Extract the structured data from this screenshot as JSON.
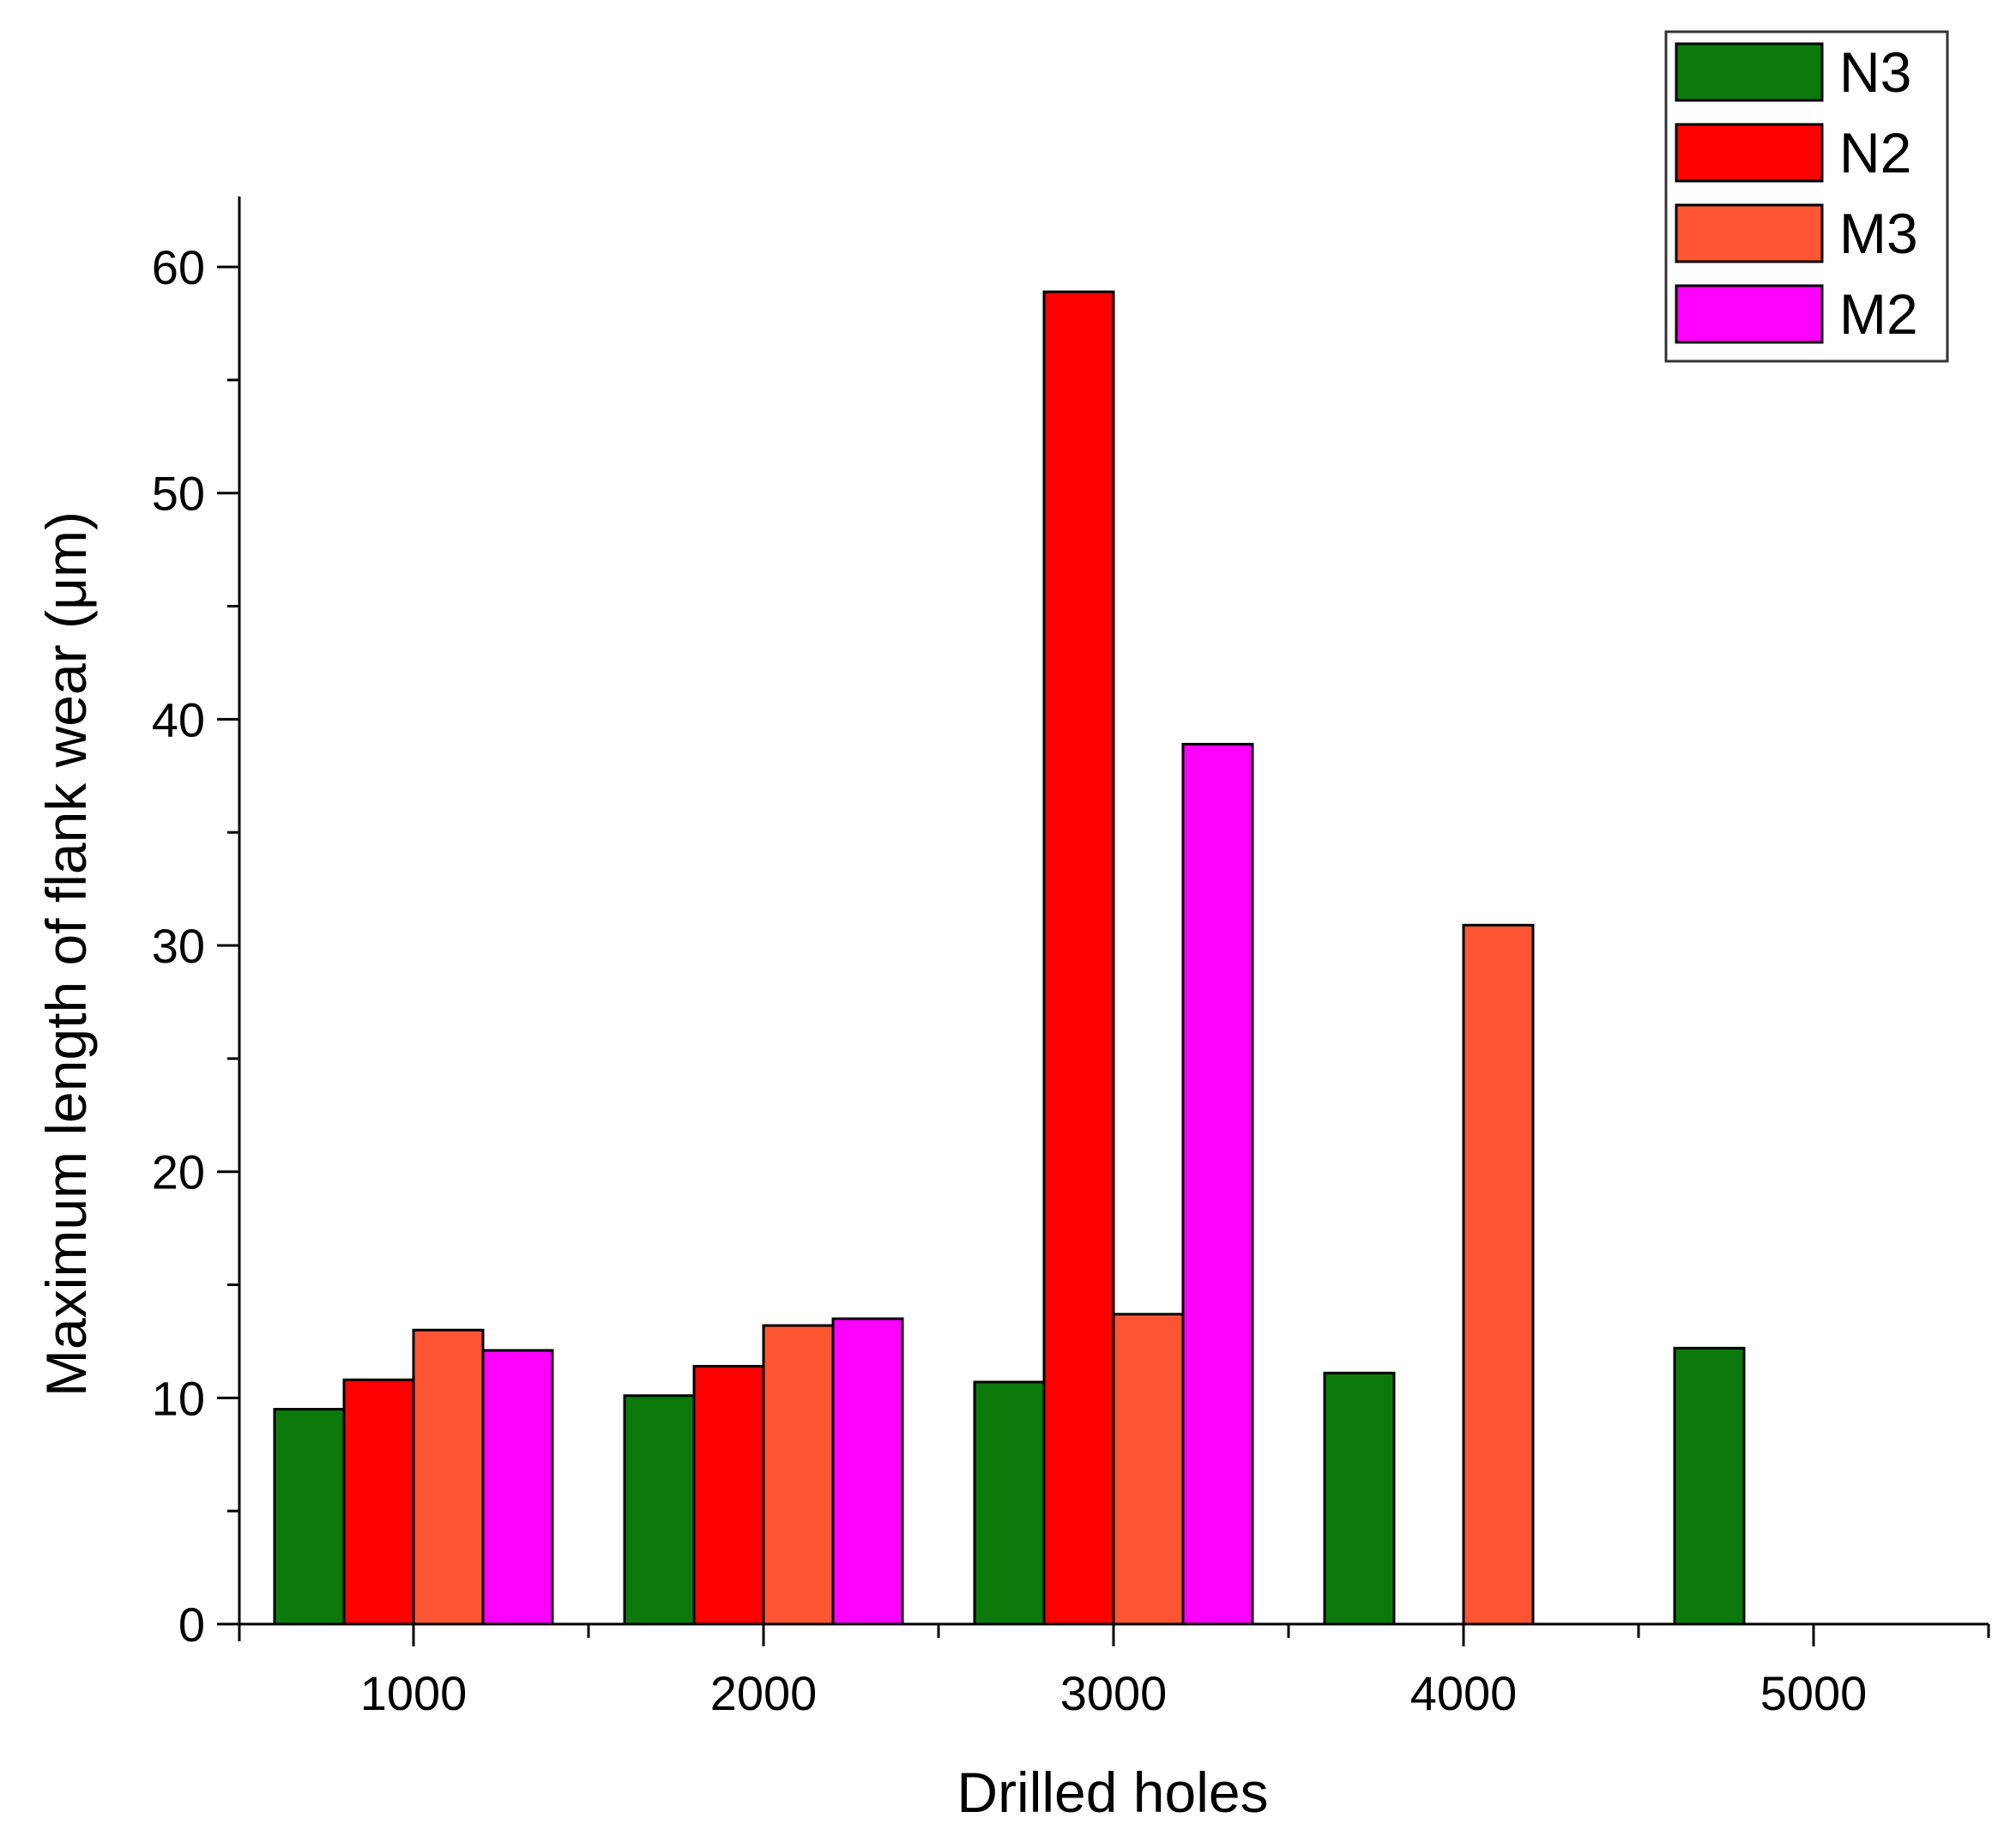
{
  "chart_data": {
    "type": "bar",
    "title": "",
    "xlabel": "Drilled holes",
    "ylabel": "Maximum length of flank wear (μm)",
    "categories": [
      "1000",
      "2000",
      "3000",
      "4000",
      "5000"
    ],
    "ylim": [
      0,
      63
    ],
    "yticks": [
      0,
      10,
      20,
      30,
      40,
      50,
      60
    ],
    "grid": false,
    "legend_position": "top-right",
    "series": [
      {
        "name": "N3",
        "color": "#0b7a0b",
        "values": [
          9.5,
          10.1,
          10.7,
          11.1,
          12.2
        ]
      },
      {
        "name": "N2",
        "color": "#ff0000",
        "values": [
          10.8,
          11.4,
          58.9,
          null,
          null
        ]
      },
      {
        "name": "M3",
        "color": "#ff5533",
        "values": [
          13.0,
          13.2,
          13.7,
          30.9,
          null
        ]
      },
      {
        "name": "M2",
        "color": "#ff00ff",
        "values": [
          12.1,
          13.5,
          38.9,
          null,
          null
        ]
      }
    ]
  }
}
